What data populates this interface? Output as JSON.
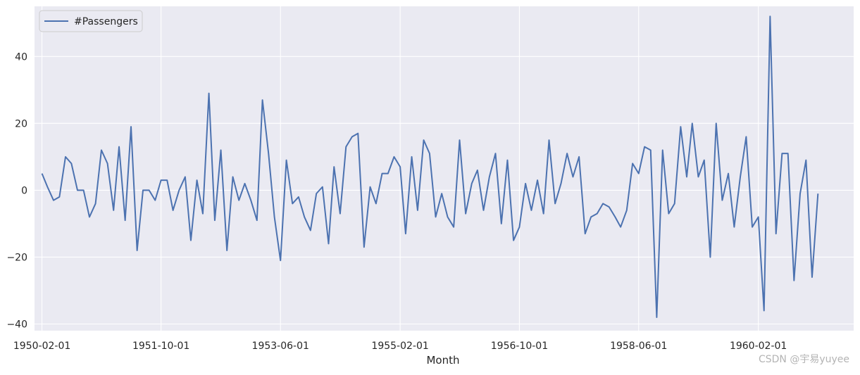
{
  "chart_data": {
    "type": "line",
    "xlabel": "Month",
    "ylabel": "",
    "legend": {
      "position": "top-left",
      "entries": [
        "#Passengers"
      ]
    },
    "grid": true,
    "ylim": [
      -42,
      55
    ],
    "xlim": [
      "1949-12-25",
      "1961-06-01"
    ],
    "x_ticks": [
      "1950-02-01",
      "1951-10-01",
      "1953-06-01",
      "1955-02-01",
      "1956-10-01",
      "1958-06-01",
      "1960-02-01"
    ],
    "y_ticks": [
      -40,
      -20,
      0,
      20,
      40
    ],
    "y_tick_labels": [
      "−40",
      "−20",
      "0",
      "20",
      "40"
    ],
    "x": [
      "1950-02-01",
      "1950-03-01",
      "1950-04-01",
      "1950-05-01",
      "1950-06-01",
      "1950-07-01",
      "1950-08-01",
      "1950-09-01",
      "1950-10-01",
      "1950-11-01",
      "1950-12-01",
      "1951-01-01",
      "1951-02-01",
      "1951-03-01",
      "1951-04-01",
      "1951-05-01",
      "1951-06-01",
      "1951-07-01",
      "1951-08-01",
      "1951-09-01",
      "1951-10-01",
      "1951-11-01",
      "1951-12-01",
      "1952-01-01",
      "1952-02-01",
      "1952-03-01",
      "1952-04-01",
      "1952-05-01",
      "1952-06-01",
      "1952-07-01",
      "1952-08-01",
      "1952-09-01",
      "1952-10-01",
      "1952-11-01",
      "1952-12-01",
      "1953-01-01",
      "1953-02-01",
      "1953-03-01",
      "1953-04-01",
      "1953-05-01",
      "1953-06-01",
      "1953-07-01",
      "1953-08-01",
      "1953-09-01",
      "1953-10-01",
      "1953-11-01",
      "1953-12-01",
      "1954-01-01",
      "1954-02-01",
      "1954-03-01",
      "1954-04-01",
      "1954-05-01",
      "1954-06-01",
      "1954-07-01",
      "1954-08-01",
      "1954-09-01",
      "1954-10-01",
      "1954-11-01",
      "1954-12-01",
      "1955-01-01",
      "1955-02-01",
      "1955-03-01",
      "1955-04-01",
      "1955-05-01",
      "1955-06-01",
      "1955-07-01",
      "1955-08-01",
      "1955-09-01",
      "1955-10-01",
      "1955-11-01",
      "1955-12-01",
      "1956-01-01",
      "1956-02-01",
      "1956-03-01",
      "1956-04-01",
      "1956-05-01",
      "1956-06-01",
      "1956-07-01",
      "1956-08-01",
      "1956-09-01",
      "1956-10-01",
      "1956-11-01",
      "1956-12-01",
      "1957-01-01",
      "1957-02-01",
      "1957-03-01",
      "1957-04-01",
      "1957-05-01",
      "1957-06-01",
      "1957-07-01",
      "1957-08-01",
      "1957-09-01",
      "1957-10-01",
      "1957-11-01",
      "1957-12-01",
      "1958-01-01",
      "1958-02-01",
      "1958-03-01",
      "1958-04-01",
      "1958-05-01",
      "1958-06-01",
      "1958-07-01",
      "1958-08-01",
      "1958-09-01",
      "1958-10-01",
      "1958-11-01",
      "1958-12-01",
      "1959-01-01",
      "1959-02-01",
      "1959-03-01",
      "1959-04-01",
      "1959-05-01",
      "1959-06-01",
      "1959-07-01",
      "1959-08-01",
      "1959-09-01",
      "1959-10-01",
      "1959-11-01",
      "1959-12-01",
      "1960-01-01",
      "1960-02-01",
      "1960-03-01",
      "1960-04-01",
      "1960-05-01",
      "1960-06-01",
      "1960-07-01",
      "1960-08-01",
      "1960-09-01",
      "1960-10-01",
      "1960-11-01",
      "1960-12-01"
    ],
    "series": [
      {
        "name": "#Passengers",
        "color": "#4c72b0",
        "values": [
          5,
          1,
          -3,
          -2,
          10,
          8,
          0,
          0,
          -8,
          -4,
          12,
          8,
          -6,
          13,
          -9,
          19,
          -18,
          0,
          0,
          -3,
          3,
          3,
          -6,
          0,
          4,
          -15,
          3,
          -7,
          29,
          -9,
          12,
          -18,
          4,
          -3,
          2,
          -3,
          -9,
          27,
          11,
          -8,
          -21,
          9,
          -4,
          -2,
          -8,
          -12,
          -1,
          1,
          -16,
          7,
          -7,
          13,
          16,
          17,
          -17,
          1,
          -4,
          5,
          5,
          10,
          7,
          -13,
          10,
          -6,
          15,
          11,
          -8,
          -1,
          -8,
          -11,
          15,
          -7,
          2,
          6,
          -6,
          4,
          11,
          -10,
          9,
          -15,
          -11,
          2,
          -6,
          3,
          -7,
          15,
          -4,
          2,
          11,
          4,
          10,
          -13,
          -8,
          -7,
          -4,
          -5,
          -8,
          -11,
          -6,
          8,
          5,
          13,
          12,
          -38,
          12,
          -7,
          -4,
          19,
          4,
          20,
          4,
          9,
          -20,
          20,
          -3,
          5,
          -11,
          4,
          16,
          -11,
          -8,
          -36,
          52,
          -13,
          11,
          11,
          -27,
          -1,
          9,
          -26,
          -1
        ]
      }
    ]
  },
  "watermark": "CSDN @宇易yuyee",
  "colors": {
    "plot_bg": "#eaeaf2",
    "grid": "#ffffff",
    "line": "#4c72b0"
  }
}
